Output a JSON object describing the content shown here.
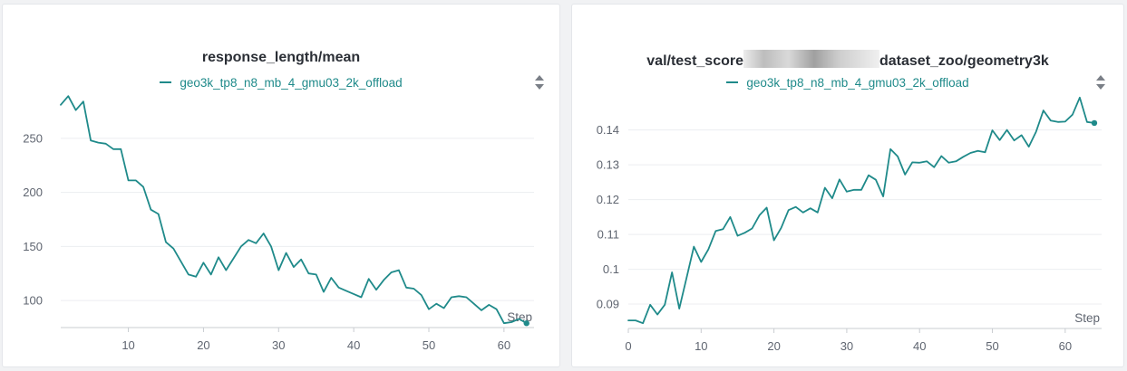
{
  "colors": {
    "series": "#1f8a8a",
    "grid": "#eceef1",
    "axis": "#c9ccd1"
  },
  "chart_data": [
    {
      "type": "line",
      "title": "response_length/mean",
      "legend": "geo3k_tp8_n8_mb_4_gmu03_2k_offload",
      "xlabel": "Step",
      "xlim": [
        1,
        64
      ],
      "ylim": [
        75,
        290
      ],
      "xticks": [
        10,
        20,
        30,
        40,
        50,
        60
      ],
      "yticks": [
        100,
        150,
        200,
        250
      ],
      "grid": true,
      "legend_position": "top-center",
      "series": [
        {
          "x": [
            1,
            2,
            3,
            4,
            5,
            6,
            7,
            8,
            9,
            10,
            11,
            12,
            13,
            14,
            15,
            16,
            17,
            18,
            19,
            20,
            21,
            22,
            23,
            24,
            25,
            26,
            27,
            28,
            29,
            30,
            31,
            32,
            33,
            34,
            35,
            36,
            37,
            38,
            39,
            40,
            41,
            42,
            43,
            44,
            45,
            46,
            47,
            48,
            49,
            50,
            51,
            52,
            53,
            54,
            55,
            56,
            57,
            58,
            59,
            60,
            61,
            62,
            63
          ],
          "values": [
            281,
            289,
            276,
            284,
            248,
            246,
            245,
            240,
            240,
            211,
            211,
            205,
            184,
            180,
            154,
            148,
            136,
            124,
            122,
            135,
            124,
            140,
            128,
            139,
            150,
            156,
            153,
            162,
            150,
            128,
            144,
            131,
            138,
            125,
            124,
            108,
            121,
            112,
            109,
            106,
            103,
            120,
            110,
            119,
            126,
            128,
            112,
            111,
            105,
            92,
            97,
            93,
            103,
            104,
            103,
            97,
            91,
            96,
            92,
            79,
            80,
            83,
            79
          ]
        }
      ]
    },
    {
      "type": "line",
      "title_prefix": "val/test_score",
      "title_suffix": "dataset_zoo/geometry3k",
      "legend": "geo3k_tp8_n8_mb_4_gmu03_2k_offload",
      "xlabel": "Step",
      "xlim": [
        0,
        65
      ],
      "ylim": [
        0.083,
        0.149
      ],
      "xticks": [
        0,
        10,
        20,
        30,
        40,
        50,
        60
      ],
      "yticks": [
        0.09,
        0.1,
        0.11,
        0.12,
        0.13,
        0.14
      ],
      "ytick_labels": [
        "0.09",
        "0.1",
        "0.11",
        "0.12",
        "0.13",
        "0.14"
      ],
      "grid": true,
      "legend_position": "top-center",
      "series": [
        {
          "x": [
            0,
            1,
            2,
            3,
            4,
            5,
            6,
            7,
            8,
            9,
            10,
            11,
            12,
            13,
            14,
            15,
            16,
            17,
            18,
            19,
            20,
            21,
            22,
            23,
            24,
            25,
            26,
            27,
            28,
            29,
            30,
            31,
            32,
            33,
            34,
            35,
            36,
            37,
            38,
            39,
            40,
            41,
            42,
            43,
            44,
            45,
            46,
            47,
            48,
            49,
            50,
            51,
            52,
            53,
            54,
            55,
            56,
            57,
            58,
            59,
            60,
            61,
            62,
            63,
            64
          ],
          "values": [
            0.0853,
            0.0853,
            0.0845,
            0.0898,
            0.087,
            0.0898,
            0.0991,
            0.0887,
            0.0975,
            0.1065,
            0.1021,
            0.1057,
            0.111,
            0.1115,
            0.115,
            0.1096,
            0.1105,
            0.1117,
            0.1155,
            0.1177,
            0.1083,
            0.1119,
            0.117,
            0.1179,
            0.1163,
            0.1175,
            0.1163,
            0.1234,
            0.1204,
            0.1258,
            0.1223,
            0.1228,
            0.1228,
            0.127,
            0.1257,
            0.1209,
            0.1345,
            0.1324,
            0.1272,
            0.1307,
            0.1306,
            0.131,
            0.1293,
            0.1325,
            0.1306,
            0.131,
            0.1323,
            0.1334,
            0.134,
            0.1336,
            0.1399,
            0.1371,
            0.14,
            0.137,
            0.1385,
            0.1352,
            0.1395,
            0.1456,
            0.1427,
            0.1423,
            0.1424,
            0.1444,
            0.1493,
            0.1423,
            0.142
          ]
        }
      ]
    }
  ]
}
